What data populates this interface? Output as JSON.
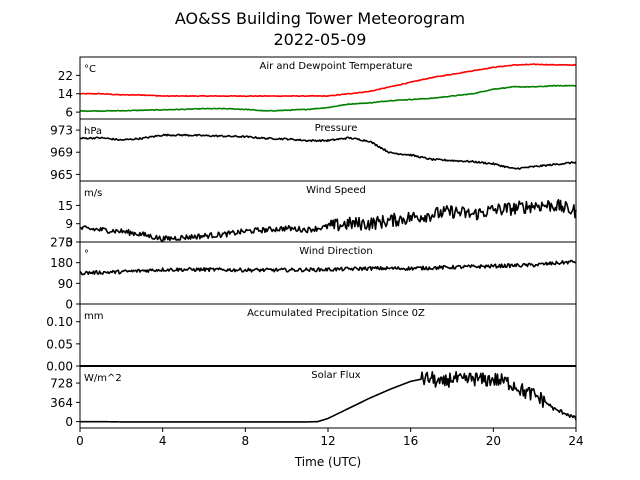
{
  "title_line1": "AO&SS Building Tower Meteorogram",
  "title_line2": "2022-05-09",
  "xlabel": "Time (UTC)",
  "x_ticks": [
    "0",
    "4",
    "8",
    "12",
    "16",
    "20",
    "24"
  ],
  "colors": {
    "temperature": "#ff0000",
    "dewpoint": "#008000",
    "default": "#000000"
  },
  "chart_data": [
    {
      "type": "line",
      "panel": "temperature",
      "title": "Air and Dewpoint Temperature",
      "unit": "°C",
      "ylim": [
        3,
        30
      ],
      "yticks": [
        6,
        14,
        22
      ],
      "xlim": [
        0,
        24
      ],
      "series": [
        {
          "color": "#ff0000",
          "x": [
            0,
            1,
            2,
            3,
            4,
            5,
            6,
            7,
            8,
            9,
            10,
            11,
            12,
            13,
            14,
            15,
            16,
            17,
            18,
            19,
            20,
            21,
            22,
            23,
            24
          ],
          "y": [
            14,
            14,
            13.5,
            13.5,
            13,
            13,
            13,
            13,
            13,
            13,
            13,
            13,
            13,
            14,
            15,
            17,
            19,
            21,
            22.5,
            24,
            25.5,
            26.5,
            26.8,
            26.6,
            26.5
          ]
        },
        {
          "color": "#008000",
          "x": [
            0,
            1,
            2,
            3,
            4,
            5,
            6,
            7,
            8,
            9,
            10,
            11,
            12,
            13,
            14,
            15,
            16,
            17,
            18,
            19,
            20,
            21,
            22,
            23,
            24
          ],
          "y": [
            6.5,
            6.5,
            6.6,
            6.8,
            7,
            7.2,
            7.5,
            7.5,
            7.2,
            6.5,
            6.8,
            7.2,
            8,
            9.5,
            10,
            11,
            11.5,
            12,
            13,
            14,
            16,
            17,
            17,
            17.5,
            17.5
          ]
        }
      ]
    },
    {
      "type": "line",
      "panel": "pressure",
      "title": "Pressure",
      "unit": "hPa",
      "ylim": [
        963.8,
        975
      ],
      "yticks": [
        965,
        969,
        973
      ],
      "xlim": [
        0,
        24
      ],
      "series": [
        {
          "color": "#000000",
          "x": [
            0,
            1,
            2,
            3,
            4,
            5,
            6,
            7,
            8,
            9,
            10,
            11,
            12,
            13,
            14,
            15,
            16,
            17,
            18,
            19,
            20,
            21,
            22,
            23,
            24
          ],
          "y": [
            971.5,
            971.6,
            971.2,
            971.5,
            972.1,
            972.1,
            972,
            971.9,
            971.8,
            971.5,
            971.4,
            971.1,
            971.1,
            971.6,
            971,
            968.9,
            968.5,
            967.7,
            967.5,
            967.3,
            966.9,
            966,
            966.4,
            966.8,
            967.2
          ]
        }
      ]
    },
    {
      "type": "line",
      "panel": "wind-speed",
      "title": "Wind Speed",
      "unit": "m/s",
      "ylim": [
        3,
        23
      ],
      "yticks": [
        3,
        9,
        15
      ],
      "xlim": [
        0,
        24
      ],
      "series": [
        {
          "color": "#000000",
          "x": [
            0,
            1,
            2,
            3,
            4,
            5,
            6,
            7,
            8,
            9,
            10,
            11,
            12,
            13,
            14,
            15,
            16,
            17,
            18,
            19,
            20,
            21,
            22,
            23,
            24
          ],
          "y": [
            7.5,
            7,
            6.5,
            5.5,
            4,
            4.5,
            5,
            5.5,
            6.5,
            7,
            7.5,
            7,
            8,
            9,
            9,
            10,
            11,
            12,
            13,
            12,
            13.5,
            14,
            15,
            15,
            13
          ]
        }
      ]
    },
    {
      "type": "line",
      "panel": "wind-direction",
      "title": "Wind Direction",
      "unit": "°",
      "ylim": [
        0,
        270
      ],
      "yticks": [
        0,
        90,
        180,
        270
      ],
      "xlim": [
        0,
        24
      ],
      "series": [
        {
          "color": "#000000",
          "x": [
            0,
            2,
            4,
            6,
            8,
            10,
            12,
            14,
            16,
            18,
            20,
            22,
            24
          ],
          "y": [
            135,
            140,
            150,
            150,
            148,
            148,
            150,
            155,
            155,
            160,
            165,
            170,
            185
          ]
        }
      ]
    },
    {
      "type": "line",
      "panel": "precipitation",
      "title": "Accumulated Precipitation Since 0Z",
      "unit": "mm",
      "ylim": [
        0,
        0.14
      ],
      "yticks": [
        0.0,
        0.05,
        0.1
      ],
      "xlim": [
        0,
        24
      ],
      "series": [
        {
          "color": "#000000",
          "x": [
            0,
            24
          ],
          "y": [
            0,
            0
          ]
        }
      ]
    },
    {
      "type": "line",
      "panel": "solar-flux",
      "title": "Solar Flux",
      "unit": "W/m^2",
      "ylim": [
        -120,
        1050
      ],
      "yticks": [
        0,
        364,
        728
      ],
      "xlim": [
        0,
        24
      ],
      "series": [
        {
          "color": "#000000",
          "x": [
            0,
            1,
            2,
            3,
            4,
            5,
            6,
            7,
            8,
            9,
            10,
            11,
            11.5,
            12,
            13,
            14,
            15,
            16,
            16.5,
            17,
            17.5,
            18,
            18.5,
            19,
            19.5,
            20,
            20.5,
            21,
            21.5,
            22,
            22.5,
            23,
            23.5,
            24
          ],
          "y": [
            0,
            0,
            -5,
            -5,
            -5,
            -5,
            -5,
            -5,
            -5,
            -5,
            -5,
            -5,
            0,
            60,
            250,
            440,
            610,
            760,
            800,
            820,
            700,
            830,
            760,
            820,
            780,
            800,
            760,
            700,
            560,
            500,
            380,
            220,
            160,
            50
          ]
        }
      ]
    }
  ]
}
